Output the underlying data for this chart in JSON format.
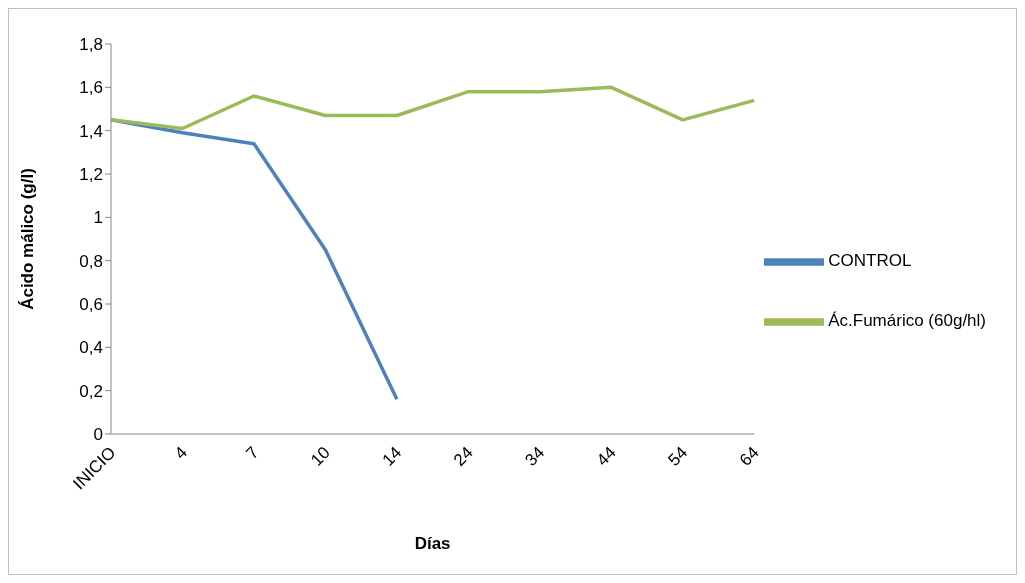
{
  "chart_data": {
    "type": "line",
    "xlabel": "Días",
    "ylabel": "Ácido málico (g/l)",
    "categories": [
      "INICIO",
      "4",
      "7",
      "10",
      "14",
      "24",
      "34",
      "44",
      "54",
      "64"
    ],
    "series": [
      {
        "name": "CONTROL",
        "color": "#4f81bd",
        "values": [
          1.45,
          1.39,
          1.34,
          0.85,
          0.16,
          null,
          null,
          null,
          null,
          null
        ]
      },
      {
        "name": "Ác.Fumárico (60g/hl)",
        "color": "#9bbb59",
        "values": [
          1.45,
          1.41,
          1.56,
          1.47,
          1.47,
          1.58,
          1.58,
          1.6,
          1.45,
          1.54
        ]
      }
    ],
    "ylim": [
      0,
      1.8
    ],
    "yticks": [
      0,
      {
        "value": 0.2,
        "label": "0,2"
      },
      {
        "value": 0.4,
        "label": "0,4"
      },
      {
        "value": 0.6,
        "label": "0,6"
      },
      {
        "value": 0.8,
        "label": "0,8"
      },
      1,
      {
        "value": 1.2,
        "label": "1,2"
      },
      {
        "value": 1.4,
        "label": "1,4"
      },
      {
        "value": 1.6,
        "label": "1,6"
      },
      {
        "value": 1.8,
        "label": "1,8"
      }
    ],
    "grid": false,
    "legend": "right",
    "marker": "none",
    "line_style": "solid"
  }
}
